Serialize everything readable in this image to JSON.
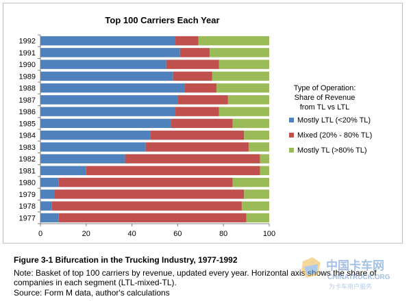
{
  "chart_data": {
    "type": "bar",
    "orientation": "horizontal",
    "stacked": true,
    "title": "Top 100 Carriers Each Year",
    "categories": [
      "1992",
      "1991",
      "1990",
      "1989",
      "1988",
      "1987",
      "1986",
      "1985",
      "1984",
      "1983",
      "1982",
      "1981",
      "1980",
      "1979",
      "1978",
      "1977"
    ],
    "series": [
      {
        "name": "Mostly LTL (<20% TL)",
        "color": "#4f81bd",
        "values": [
          59,
          61,
          55,
          58,
          63,
          60,
          59,
          57,
          48,
          46,
          37,
          20,
          8,
          6,
          5,
          8
        ]
      },
      {
        "name": "Mixed (20% - 80% TL)",
        "color": "#c0504d",
        "values": [
          10,
          13,
          23,
          17,
          14,
          22,
          19,
          27,
          41,
          45,
          59,
          76,
          76,
          83,
          83,
          82
        ]
      },
      {
        "name": "Mostly TL (>80% TL)",
        "color": "#9bbb59",
        "values": [
          31,
          26,
          22,
          25,
          23,
          18,
          22,
          16,
          11,
          9,
          4,
          4,
          16,
          11,
          12,
          10
        ]
      }
    ],
    "xlim": [
      0,
      100
    ],
    "xticks": [
      0,
      20,
      40,
      60,
      80,
      100
    ],
    "grid": false,
    "legend": {
      "title_lines": [
        "Type of Operation:",
        "Share of Revenue",
        "from TL vs LTL"
      ],
      "position": "right"
    }
  },
  "caption": {
    "figure_title": "Figure 3-1 Bifurcation in the Trucking Industry, 1977-1992",
    "note_line1": "Note: Basket of top 100 carriers by revenue, updated every year. Horizontal axis shows the share of",
    "note_line2": "companies in each segment (LTL-mixed-TL).",
    "source": "Source: Form M data, author's calculations"
  },
  "watermark": {
    "title": "中国卡车网",
    "subtitle": "CHINATRUCK.ORG",
    "tagline": "为卡车用户服务",
    "color": "#5b8fd0"
  }
}
